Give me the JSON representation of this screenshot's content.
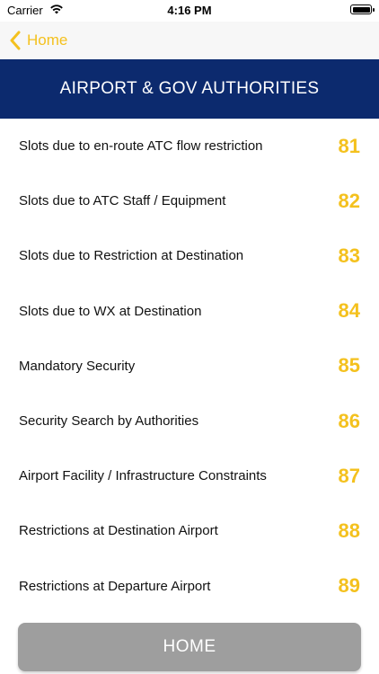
{
  "status_bar": {
    "carrier": "Carrier",
    "time": "4:16 PM"
  },
  "nav": {
    "back_label": "Home"
  },
  "header": {
    "title": "AIRPORT & GOV AUTHORITIES"
  },
  "items": [
    {
      "label": "Slots due to en-route ATC flow restriction",
      "code": "81"
    },
    {
      "label": "Slots due to ATC Staff / Equipment",
      "code": "82"
    },
    {
      "label": "Slots due to Restriction at Destination",
      "code": "83"
    },
    {
      "label": "Slots due to WX at Destination",
      "code": "84"
    },
    {
      "label": "Mandatory Security",
      "code": "85"
    },
    {
      "label": "Security Search by Authorities",
      "code": "86"
    },
    {
      "label": "Airport Facility / Infrastructure Constraints",
      "code": "87"
    },
    {
      "label": "Restrictions at Destination Airport",
      "code": "88"
    },
    {
      "label": "Restrictions at Departure Airport",
      "code": "89"
    }
  ],
  "footer": {
    "home_button_label": "HOME"
  },
  "colors": {
    "accent": "#f4c11e",
    "header_bg": "#0c2a6e",
    "button_bg": "#9e9e9e"
  },
  "icons": {
    "wifi": "wifi-icon",
    "battery": "battery-icon",
    "back": "chevron-left-icon"
  }
}
